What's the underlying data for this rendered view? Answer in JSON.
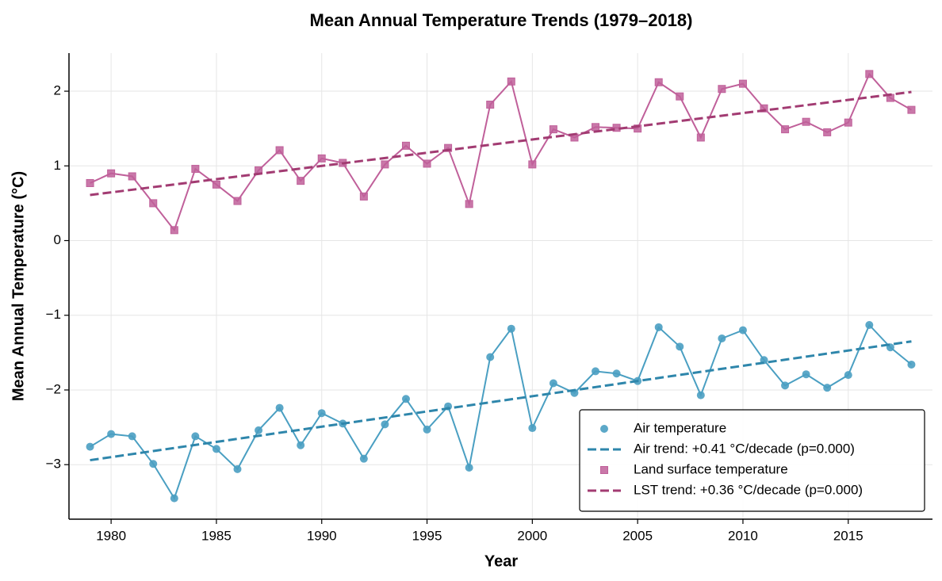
{
  "chart_data": {
    "type": "line",
    "title": "Mean Annual Temperature Trends (1979–2018)",
    "x_label": "Year",
    "y_label": "Mean Annual Temperature (°C)",
    "x": [
      1979,
      1980,
      1981,
      1982,
      1983,
      1984,
      1985,
      1986,
      1987,
      1988,
      1989,
      1990,
      1991,
      1992,
      1993,
      1994,
      1995,
      1996,
      1997,
      1998,
      1999,
      2000,
      2001,
      2002,
      2003,
      2004,
      2005,
      2006,
      2007,
      2008,
      2009,
      2010,
      2011,
      2012,
      2013,
      2014,
      2015,
      2016,
      2017,
      2018
    ],
    "xlim": [
      1978,
      2019
    ],
    "xticks": [
      1980,
      1985,
      1990,
      1995,
      2000,
      2005,
      2010,
      2015
    ],
    "ylim": [
      -3.73,
      2.51
    ],
    "yticks": [
      {
        "value": -3,
        "label": "−3"
      },
      {
        "value": -2,
        "label": "−2"
      },
      {
        "value": -1,
        "label": "−1"
      },
      0,
      1,
      2
    ],
    "grid": true,
    "legend_position": "lower right",
    "series": [
      {
        "name": "Air temperature",
        "color": "#4a9fc2",
        "style": "marker-line",
        "marker": "circle",
        "values": [
          -2.76,
          -2.59,
          -2.62,
          -2.99,
          -3.45,
          -2.62,
          -2.79,
          -3.06,
          -2.54,
          -2.24,
          -2.74,
          -2.31,
          -2.45,
          -2.92,
          -2.46,
          -2.12,
          -2.53,
          -2.22,
          -3.04,
          -1.56,
          -1.18,
          -2.51,
          -1.91,
          -2.04,
          -1.75,
          -1.78,
          -1.88,
          -1.16,
          -1.42,
          -2.07,
          -1.31,
          -1.2,
          -1.6,
          -1.94,
          -1.79,
          -1.97,
          -1.8,
          -1.13,
          -1.43,
          -1.66
        ]
      },
      {
        "name": "Air trend: +0.41 °C/decade (p=0.000)",
        "color": "#2e86ab",
        "style": "dashed",
        "x": [
          1979,
          2018
        ],
        "values": [
          -2.94,
          -1.35
        ]
      },
      {
        "name": "Land surface temperature",
        "color": "#c0609a",
        "style": "marker-line",
        "marker": "square",
        "values": [
          0.77,
          0.9,
          0.86,
          0.5,
          0.14,
          0.96,
          0.75,
          0.53,
          0.94,
          1.21,
          0.8,
          1.1,
          1.04,
          0.59,
          1.02,
          1.27,
          1.03,
          1.24,
          0.49,
          1.82,
          2.13,
          1.02,
          1.49,
          1.38,
          1.52,
          1.51,
          1.5,
          2.12,
          1.93,
          1.38,
          2.03,
          2.1,
          1.77,
          1.49,
          1.59,
          1.45,
          1.58,
          2.23,
          1.91,
          1.75
        ]
      },
      {
        "name": "LST trend: +0.36 °C/decade (p=0.000)",
        "color": "#a23b72",
        "style": "dashed",
        "x": [
          1979,
          2018
        ],
        "values": [
          0.61,
          1.99
        ]
      }
    ]
  }
}
